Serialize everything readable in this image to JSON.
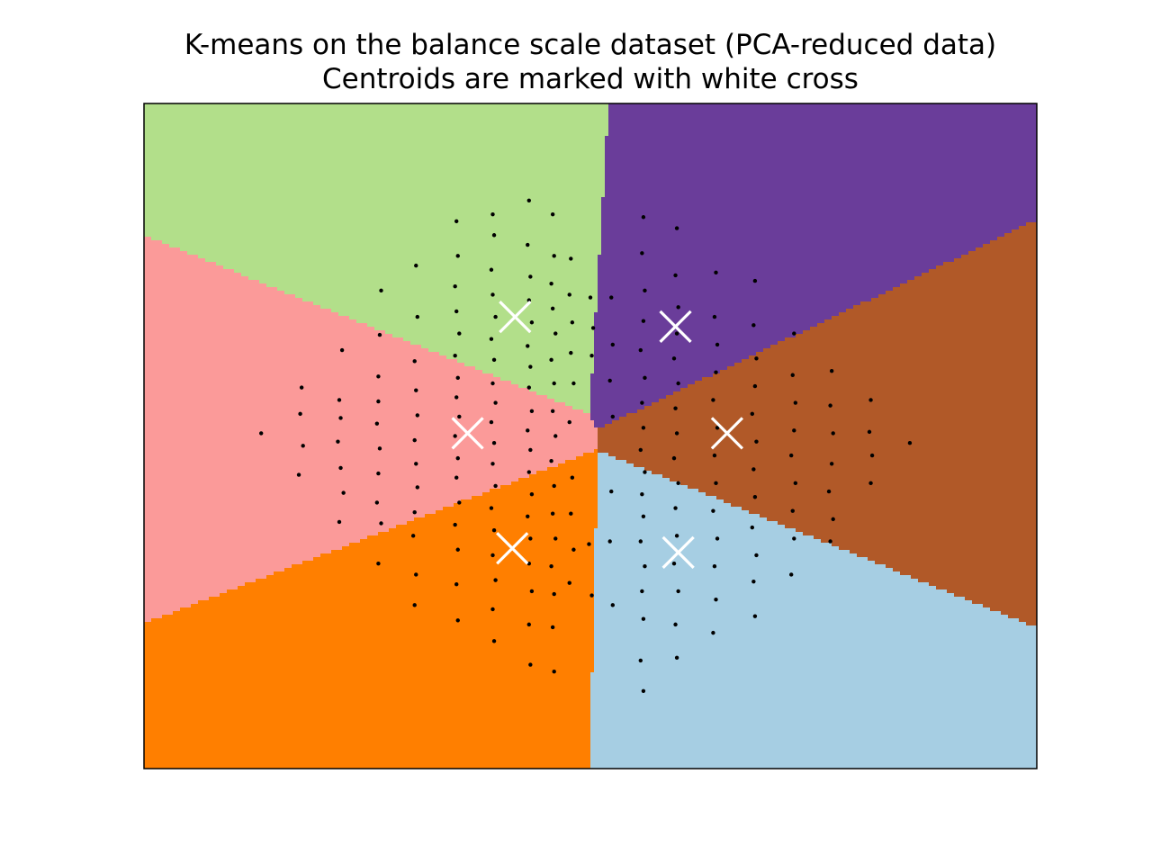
{
  "chart_data": {
    "type": "scatter",
    "title": "K-means on the balance scale dataset (PCA-reduced data)",
    "subtitle": "Centroids are marked with white cross",
    "xlabel": "",
    "ylabel": "",
    "xlim": [
      -3.2,
      3.2
    ],
    "ylim": [
      -2.4,
      2.4
    ],
    "ticks_visible": false,
    "grid": false,
    "legend": "none",
    "colors": {
      "background": "#ffffff",
      "frame": "#000000",
      "points": "#000000",
      "centroids": "#ffffff"
    },
    "regions": [
      {
        "cluster": 0,
        "color": "#b2df8a"
      },
      {
        "cluster": 1,
        "color": "#6a3d9a"
      },
      {
        "cluster": 2,
        "color": "#fb9a99"
      },
      {
        "cluster": 3,
        "color": "#b15928"
      },
      {
        "cluster": 4,
        "color": "#ff7f00"
      },
      {
        "cluster": 5,
        "color": "#a6cee3"
      }
    ],
    "centroids": [
      {
        "cluster": 0,
        "x": -0.54,
        "y": 0.86
      },
      {
        "cluster": 1,
        "x": 0.61,
        "y": 0.79
      },
      {
        "cluster": 2,
        "x": -0.88,
        "y": 0.02
      },
      {
        "cluster": 3,
        "x": 0.98,
        "y": 0.02
      },
      {
        "cluster": 4,
        "x": -0.56,
        "y": -0.81
      },
      {
        "cluster": 5,
        "x": 0.63,
        "y": -0.84
      }
    ],
    "points": [
      [
        -2.36,
        0.02
      ],
      [
        -2.07,
        0.35
      ],
      [
        -2.06,
        -0.07
      ],
      [
        -2.08,
        0.16
      ],
      [
        -2.09,
        -0.28
      ],
      [
        -1.78,
        0.62
      ],
      [
        -1.8,
        0.26
      ],
      [
        -1.79,
        0.13
      ],
      [
        -1.81,
        -0.04
      ],
      [
        -1.79,
        -0.23
      ],
      [
        -1.77,
        -0.41
      ],
      [
        -1.8,
        -0.62
      ],
      [
        -1.5,
        1.05
      ],
      [
        -1.51,
        0.73
      ],
      [
        -1.52,
        0.43
      ],
      [
        -1.52,
        0.25
      ],
      [
        -1.53,
        0.09
      ],
      [
        -1.51,
        -0.09
      ],
      [
        -1.52,
        -0.27
      ],
      [
        -1.53,
        -0.48
      ],
      [
        -1.5,
        -0.63
      ],
      [
        -1.52,
        -0.92
      ],
      [
        -1.25,
        1.23
      ],
      [
        -1.24,
        0.86
      ],
      [
        -1.26,
        0.54
      ],
      [
        -1.25,
        0.33
      ],
      [
        -1.24,
        0.15
      ],
      [
        -1.26,
        -0.03
      ],
      [
        -1.25,
        -0.2
      ],
      [
        -1.24,
        -0.37
      ],
      [
        -1.26,
        -0.55
      ],
      [
        -1.27,
        -0.72
      ],
      [
        -1.25,
        -1.0
      ],
      [
        -1.26,
        -1.22
      ],
      [
        -0.96,
        1.55
      ],
      [
        -0.95,
        1.3
      ],
      [
        -0.97,
        1.08
      ],
      [
        -0.96,
        0.9
      ],
      [
        -0.94,
        0.74
      ],
      [
        -0.97,
        0.58
      ],
      [
        -0.95,
        0.42
      ],
      [
        -0.96,
        0.28
      ],
      [
        -0.94,
        0.14
      ],
      [
        -0.97,
        0.0
      ],
      [
        -0.95,
        -0.16
      ],
      [
        -0.96,
        -0.3
      ],
      [
        -0.94,
        -0.48
      ],
      [
        -0.97,
        -0.64
      ],
      [
        -0.95,
        -0.82
      ],
      [
        -0.96,
        -1.07
      ],
      [
        -0.95,
        -1.33
      ],
      [
        -0.7,
        1.6
      ],
      [
        -0.69,
        1.45
      ],
      [
        -0.71,
        1.2
      ],
      [
        -0.7,
        1.02
      ],
      [
        -0.68,
        0.86
      ],
      [
        -0.71,
        0.7
      ],
      [
        -0.69,
        0.55
      ],
      [
        -0.7,
        0.38
      ],
      [
        -0.68,
        0.24
      ],
      [
        -0.71,
        0.1
      ],
      [
        -0.69,
        -0.05
      ],
      [
        -0.7,
        -0.2
      ],
      [
        -0.68,
        -0.36
      ],
      [
        -0.71,
        -0.52
      ],
      [
        -0.69,
        -0.68
      ],
      [
        -0.7,
        -0.86
      ],
      [
        -0.68,
        -1.04
      ],
      [
        -0.7,
        -1.25
      ],
      [
        -0.69,
        -1.48
      ],
      [
        -0.44,
        1.7
      ],
      [
        -0.45,
        1.38
      ],
      [
        -0.43,
        1.15
      ],
      [
        -0.44,
        0.98
      ],
      [
        -0.42,
        0.82
      ],
      [
        -0.45,
        0.65
      ],
      [
        -0.43,
        0.5
      ],
      [
        -0.44,
        0.35
      ],
      [
        -0.42,
        0.18
      ],
      [
        -0.45,
        0.04
      ],
      [
        -0.43,
        -0.1
      ],
      [
        -0.44,
        -0.26
      ],
      [
        -0.42,
        -0.42
      ],
      [
        -0.45,
        -0.58
      ],
      [
        -0.43,
        -0.74
      ],
      [
        -0.44,
        -0.92
      ],
      [
        -0.42,
        -1.12
      ],
      [
        -0.44,
        -1.36
      ],
      [
        -0.43,
        -1.65
      ],
      [
        -0.27,
        1.6
      ],
      [
        -0.26,
        1.3
      ],
      [
        -0.28,
        1.1
      ],
      [
        -0.27,
        0.92
      ],
      [
        -0.25,
        0.74
      ],
      [
        -0.28,
        0.55
      ],
      [
        -0.26,
        0.38
      ],
      [
        -0.27,
        0.18
      ],
      [
        -0.25,
        0.0
      ],
      [
        -0.28,
        -0.18
      ],
      [
        -0.26,
        -0.36
      ],
      [
        -0.27,
        -0.56
      ],
      [
        -0.25,
        -0.74
      ],
      [
        -0.28,
        -0.94
      ],
      [
        -0.26,
        -1.14
      ],
      [
        -0.27,
        -1.38
      ],
      [
        -0.26,
        -1.7
      ],
      [
        -0.14,
        1.28
      ],
      [
        -0.15,
        1.02
      ],
      [
        -0.13,
        0.82
      ],
      [
        -0.14,
        0.6
      ],
      [
        -0.12,
        0.38
      ],
      [
        -0.15,
        0.1
      ],
      [
        -0.13,
        -0.3
      ],
      [
        -0.14,
        -0.56
      ],
      [
        -0.12,
        -0.82
      ],
      [
        -0.15,
        -1.06
      ],
      [
        0.0,
        1.0
      ],
      [
        0.02,
        0.78
      ],
      [
        0.01,
        0.58
      ],
      [
        -0.01,
        -0.78
      ],
      [
        0.01,
        -1.15
      ],
      [
        0.15,
        1.0
      ],
      [
        0.16,
        0.66
      ],
      [
        0.14,
        0.4
      ],
      [
        0.16,
        0.14
      ],
      [
        0.15,
        -0.4
      ],
      [
        0.14,
        -0.76
      ],
      [
        0.16,
        -1.22
      ],
      [
        0.38,
        1.58
      ],
      [
        0.37,
        1.32
      ],
      [
        0.39,
        1.05
      ],
      [
        0.38,
        0.83
      ],
      [
        0.36,
        0.62
      ],
      [
        0.39,
        0.42
      ],
      [
        0.37,
        0.24
      ],
      [
        0.38,
        0.06
      ],
      [
        0.36,
        -0.1
      ],
      [
        0.39,
        -0.26
      ],
      [
        0.37,
        -0.42
      ],
      [
        0.38,
        -0.58
      ],
      [
        0.36,
        -0.76
      ],
      [
        0.39,
        -0.94
      ],
      [
        0.37,
        -1.12
      ],
      [
        0.38,
        -1.32
      ],
      [
        0.36,
        -1.62
      ],
      [
        0.38,
        -1.84
      ],
      [
        0.62,
        1.5
      ],
      [
        0.61,
        1.16
      ],
      [
        0.63,
        0.93
      ],
      [
        0.62,
        0.74
      ],
      [
        0.6,
        0.56
      ],
      [
        0.63,
        0.38
      ],
      [
        0.61,
        0.2
      ],
      [
        0.62,
        0.02
      ],
      [
        0.6,
        -0.16
      ],
      [
        0.63,
        -0.34
      ],
      [
        0.61,
        -0.52
      ],
      [
        0.62,
        -0.72
      ],
      [
        0.6,
        -0.92
      ],
      [
        0.63,
        -1.12
      ],
      [
        0.61,
        -1.36
      ],
      [
        0.62,
        -1.6
      ],
      [
        0.9,
        1.18
      ],
      [
        0.89,
        0.86
      ],
      [
        0.91,
        0.66
      ],
      [
        0.9,
        0.46
      ],
      [
        0.88,
        0.26
      ],
      [
        0.91,
        0.06
      ],
      [
        0.89,
        -0.14
      ],
      [
        0.9,
        -0.34
      ],
      [
        0.88,
        -0.54
      ],
      [
        0.91,
        -0.74
      ],
      [
        0.89,
        -0.94
      ],
      [
        0.9,
        -1.18
      ],
      [
        0.88,
        -1.42
      ],
      [
        1.18,
        1.12
      ],
      [
        1.17,
        0.8
      ],
      [
        1.19,
        0.56
      ],
      [
        1.18,
        0.36
      ],
      [
        1.16,
        0.16
      ],
      [
        1.19,
        -0.04
      ],
      [
        1.17,
        -0.24
      ],
      [
        1.18,
        -0.44
      ],
      [
        1.16,
        -0.66
      ],
      [
        1.19,
        -0.86
      ],
      [
        1.17,
        -1.05
      ],
      [
        1.18,
        -1.3
      ],
      [
        1.46,
        0.74
      ],
      [
        1.45,
        0.44
      ],
      [
        1.47,
        0.24
      ],
      [
        1.46,
        0.04
      ],
      [
        1.44,
        -0.14
      ],
      [
        1.47,
        -0.34
      ],
      [
        1.45,
        -0.54
      ],
      [
        1.46,
        -0.74
      ],
      [
        1.44,
        -1.0
      ],
      [
        1.73,
        0.47
      ],
      [
        1.72,
        0.22
      ],
      [
        1.74,
        0.02
      ],
      [
        1.73,
        -0.2
      ],
      [
        1.71,
        -0.4
      ],
      [
        1.74,
        -0.6
      ],
      [
        1.72,
        -0.76
      ],
      [
        2.01,
        0.26
      ],
      [
        2.0,
        0.03
      ],
      [
        2.02,
        -0.14
      ],
      [
        2.01,
        -0.34
      ],
      [
        2.29,
        -0.05
      ]
    ]
  }
}
